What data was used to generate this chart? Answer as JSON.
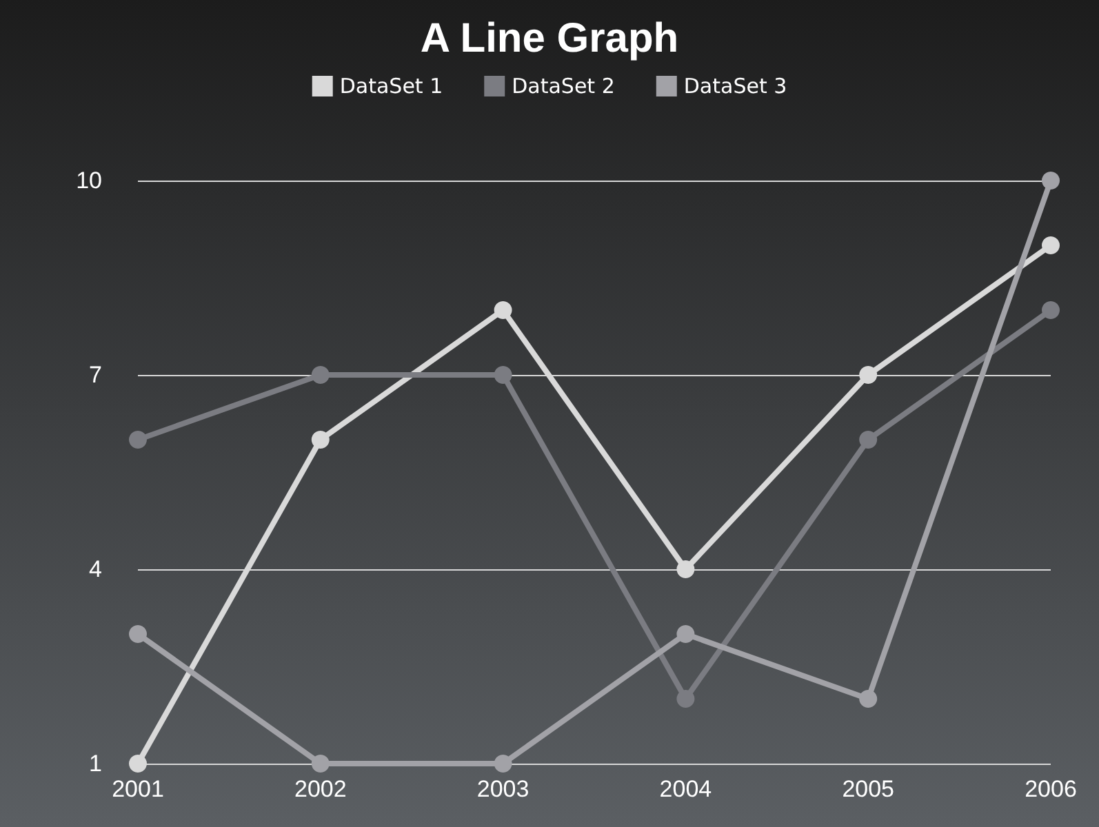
{
  "chart_data": {
    "type": "line",
    "title": "A Line Graph",
    "categories": [
      "2001",
      "2002",
      "2003",
      "2004",
      "2005",
      "2006"
    ],
    "series": [
      {
        "name": "DataSet 1",
        "color": "#d9d9d9",
        "values": [
          1,
          6,
          8,
          4,
          7,
          9
        ]
      },
      {
        "name": "DataSet 2",
        "color": "#7b7c82",
        "values": [
          6,
          7,
          7,
          2,
          6,
          8
        ]
      },
      {
        "name": "DataSet 3",
        "color": "#a2a2a7",
        "values": [
          3,
          1,
          1,
          3,
          2,
          10
        ]
      }
    ],
    "ylim": [
      1,
      10
    ],
    "yticks": [
      1,
      4,
      7,
      10
    ],
    "grid": "y",
    "legend": "top",
    "marker": "circle",
    "line_style": "solid"
  }
}
